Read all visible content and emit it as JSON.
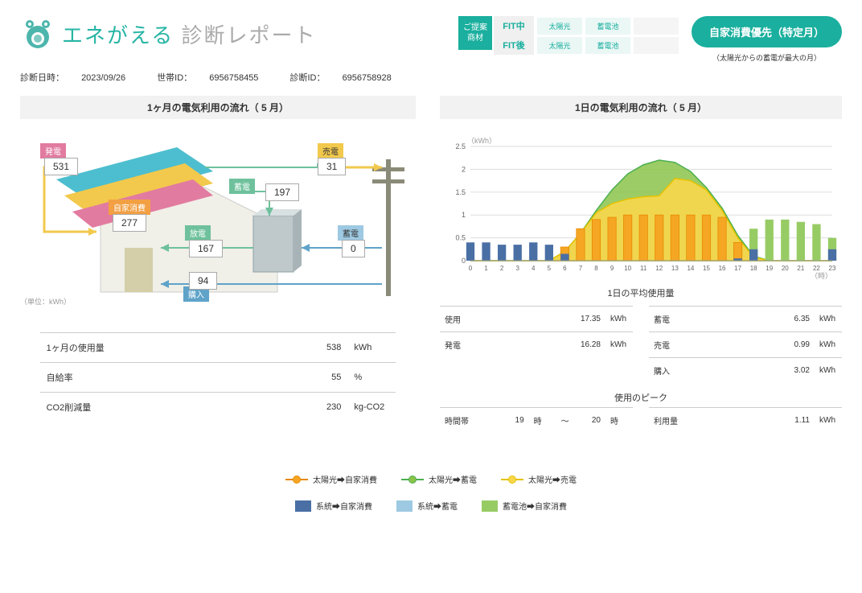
{
  "header": {
    "title_main": "エネがえる",
    "title_sub": "診断レポート",
    "diag_date_label": "診断日時：",
    "diag_date": "2023/09/26",
    "household_label": "世帯ID：",
    "household_id": "6956758455",
    "diag_id_label": "診断ID：",
    "diag_id": "6956758928",
    "recommend": "ご提案\n商材",
    "fit_rows": [
      {
        "label": "FIT中",
        "cells": [
          "太陽光",
          "蓄電池"
        ],
        "empty": 1
      },
      {
        "label": "FIT後",
        "cells": [
          "太陽光",
          "蓄電池"
        ],
        "empty": 1
      }
    ],
    "badge": "自家消費優先（特定月）",
    "badge_sub": "（太陽光からの蓄電が最大の月）"
  },
  "colors": {
    "brand": "#1aaf9e",
    "orange": "#f5a623",
    "orange_line": "#e68a00",
    "green": "#8bc34a",
    "green_line": "#4caf50",
    "yellow": "#f9d74b",
    "yellow_line": "#e6c200",
    "blue_dark": "#4a6fa5",
    "blue_light": "#9ec9e2",
    "green_block": "#97cc64",
    "grid": "#ddd"
  },
  "monthly": {
    "title": "1ヶ月の電気利用の流れ（ 5 月）",
    "unit_note": "（単位：kWh）",
    "flow": {
      "hatsuden_label": "発電",
      "hatsuden": "531",
      "jika_label": "自家消費",
      "jika": "277",
      "chikuden_label": "蓄電",
      "chikuden": "197",
      "houden_label": "放電",
      "houden": "167",
      "baiden_label": "売電",
      "baiden": "31",
      "syuden_label": "蓄電",
      "syuden": "0",
      "kounyu_label": "購入",
      "kounyu": "94"
    },
    "stats": [
      {
        "label": "1ヶ月の使用量",
        "val": "538",
        "unit": "kWh"
      },
      {
        "label": "自給率",
        "val": "55",
        "unit": "%"
      },
      {
        "label": "CO2削減量",
        "val": "230",
        "unit": "kg-CO2"
      }
    ]
  },
  "daily": {
    "title": "1日の電気利用の流れ（ 5 月）",
    "ylabel": "（kWh）",
    "xlabel": "（時）",
    "xlim": [
      0,
      23
    ],
    "ylim": [
      0,
      2.5
    ],
    "ytick_step": 0.5,
    "hours": [
      0,
      1,
      2,
      3,
      4,
      5,
      6,
      7,
      8,
      9,
      10,
      11,
      12,
      13,
      14,
      15,
      16,
      17,
      18,
      19,
      20,
      21,
      22,
      23
    ],
    "bars_grid": [
      0.4,
      0.4,
      0.35,
      0.35,
      0.4,
      0.35,
      0.15,
      0,
      0,
      0,
      0,
      0,
      0,
      0,
      0,
      0,
      0,
      0.05,
      0.25,
      0,
      0,
      0,
      0,
      0.25
    ],
    "bars_orange": [
      0,
      0,
      0,
      0,
      0,
      0,
      0.3,
      0.7,
      0.9,
      0.95,
      1.0,
      1.0,
      1.0,
      1.0,
      1.0,
      1.0,
      0.95,
      0.4,
      0,
      0,
      0,
      0,
      0,
      0
    ],
    "bars_battery_discharge": [
      0,
      0,
      0,
      0,
      0,
      0,
      0,
      0,
      0,
      0,
      0,
      0,
      0,
      0,
      0,
      0,
      0,
      0,
      0.7,
      0.9,
      0.9,
      0.85,
      0.8,
      0.5
    ],
    "area_green": [
      0,
      0,
      0,
      0,
      0,
      0,
      0.2,
      0.6,
      1.1,
      1.55,
      1.9,
      2.1,
      2.2,
      2.15,
      1.95,
      1.6,
      1.15,
      0.55,
      0.1,
      0,
      0,
      0,
      0,
      0
    ],
    "area_yellow": [
      0,
      0,
      0,
      0,
      0,
      0,
      0.2,
      0.6,
      1.05,
      1.25,
      1.35,
      1.4,
      1.42,
      1.8,
      1.75,
      1.55,
      1.1,
      0.5,
      0.08,
      0,
      0,
      0,
      0,
      0
    ],
    "avg_title": "1日の平均使用量",
    "left_rows": [
      {
        "label": "使用",
        "val": "17.35",
        "unit": "kWh"
      },
      {
        "label": "発電",
        "val": "16.28",
        "unit": "kWh"
      }
    ],
    "right_rows": [
      {
        "label": "蓄電",
        "val": "6.35",
        "unit": "kWh"
      },
      {
        "label": "売電",
        "val": "0.99",
        "unit": "kWh"
      },
      {
        "label": "購入",
        "val": "3.02",
        "unit": "kWh"
      }
    ],
    "peak_title": "使用のピーク",
    "peak_row": {
      "range_label": "時間帯",
      "h1": "19",
      "h_sep1": "時",
      "tilde": "～",
      "h2": "20",
      "h_sep2": "時",
      "use_label": "利用量",
      "val": "1.11",
      "unit": "kWh"
    }
  },
  "legend": {
    "lines": [
      {
        "text": "太陽光➡自家消費",
        "color": "#e68a00",
        "fill": "#f5a623"
      },
      {
        "text": "太陽光➡蓄電",
        "color": "#4caf50",
        "fill": "#8bc34a"
      },
      {
        "text": "太陽光➡売電",
        "color": "#e6c200",
        "fill": "#f9d74b"
      }
    ],
    "blocks": [
      {
        "text": "系統➡自家消費",
        "color": "#4a6fa5"
      },
      {
        "text": "系統➡蓄電",
        "color": "#9ec9e2"
      },
      {
        "text": "蓄電池➡自家消費",
        "color": "#97cc64"
      }
    ]
  }
}
